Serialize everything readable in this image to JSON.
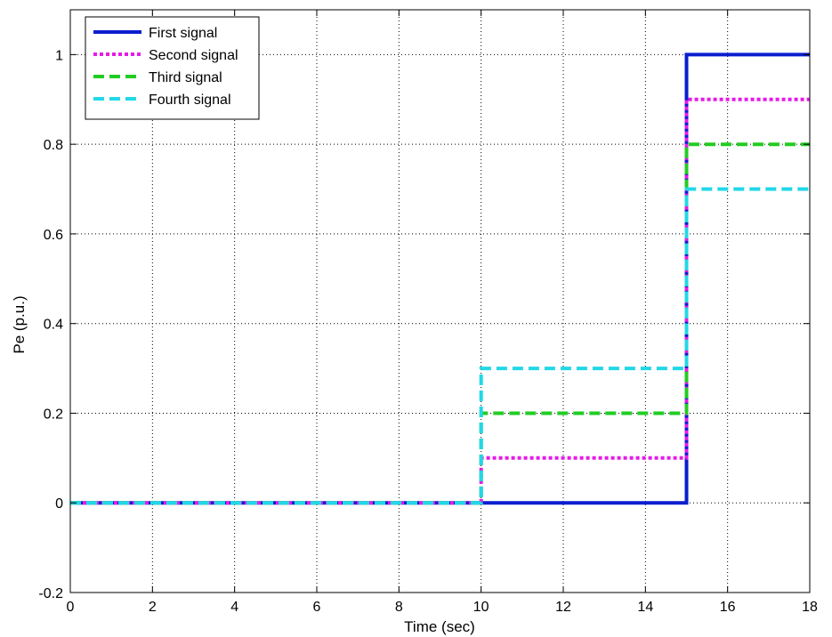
{
  "chart_data": {
    "type": "line",
    "xlabel": "Time (sec)",
    "ylabel": "Pe (p.u.)",
    "xlim": [
      0,
      18
    ],
    "ylim": [
      -0.2,
      1.1
    ],
    "xticks": [
      "0",
      "2",
      "4",
      "6",
      "8",
      "10",
      "12",
      "14",
      "16",
      "18"
    ],
    "yticks": [
      "-0.2",
      "0",
      "0.2",
      "0.4",
      "0.6",
      "0.8",
      "1"
    ],
    "grid": true,
    "legend_position": "top-left",
    "series": [
      {
        "name": "First signal",
        "color": "#0a1ecf",
        "style": "solid",
        "x": [
          0,
          10,
          10,
          15,
          15,
          18
        ],
        "y": [
          0,
          0,
          0,
          0,
          1.0,
          1.0
        ]
      },
      {
        "name": "Second signal",
        "color": "#e61be6",
        "style": "dotted",
        "x": [
          0,
          10,
          10,
          15,
          15,
          18
        ],
        "y": [
          0,
          0,
          0.1,
          0.1,
          0.9,
          0.9
        ]
      },
      {
        "name": "Third signal",
        "color": "#22cc22",
        "style": "dashed",
        "x": [
          0,
          10,
          10,
          15,
          15,
          18
        ],
        "y": [
          0,
          0,
          0.2,
          0.2,
          0.8,
          0.8
        ]
      },
      {
        "name": "Fourth signal",
        "color": "#22d8e6",
        "style": "dashed",
        "x": [
          0,
          10,
          10,
          15,
          15,
          18
        ],
        "y": [
          0,
          0,
          0.3,
          0.3,
          0.7,
          0.7
        ]
      }
    ]
  }
}
